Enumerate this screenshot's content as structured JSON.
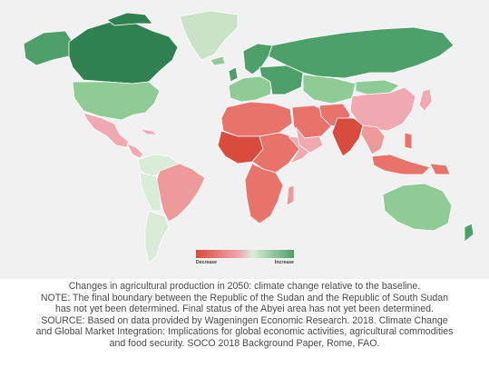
{
  "legend": {
    "low_label": "Decrease",
    "high_label": "Increase",
    "colors": [
      "#d94b3c",
      "#e8736a",
      "#f0a9b0",
      "#d9ecd7",
      "#8fcb95",
      "#4da06a",
      "#2f8150"
    ]
  },
  "caption": {
    "line1": "Changes in agricultural production in 2050: climate change relative to the baseline.",
    "line2": "NOTE: The final boundary between the Republic of the Sudan and the Republic of South Sudan",
    "line3": "has not yet been determined. Final status of the Abyei area has not yet been determined.",
    "line4": "SOURCE: Based on data provided by Wageningen Economic Research. 2018. Climate Change",
    "line5": "and Global Market Integration: Implications for global economic activities, agricultural commodities",
    "line6": "and food security. SOCO 2018 Background Paper, Rome, FAO."
  }
}
